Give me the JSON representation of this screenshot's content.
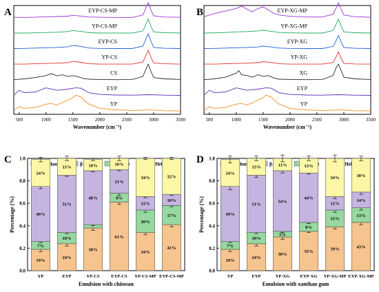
{
  "chart_data": [
    {
      "panel": "A",
      "type": "line",
      "xlabel": "Wavenumber (cm⁻¹)",
      "xlim": [
        400,
        3500
      ],
      "xticks": [
        500,
        1000,
        1500,
        2000,
        2500,
        3000,
        3500
      ],
      "series": [
        {
          "name": "EYP-CS-MP",
          "color": "#9b30d9",
          "x": [
            400,
            600,
            800,
            1000,
            1200,
            1400,
            1500,
            1650,
            1800,
            2000,
            2300,
            2600,
            2800,
            2850,
            2900,
            2950,
            3000,
            3200,
            3500
          ],
          "y": [
            0.06,
            0.05,
            0.07,
            0.09,
            0.11,
            0.13,
            0.18,
            0.14,
            0.08,
            0.06,
            0.05,
            0.05,
            0.2,
            0.6,
            0.95,
            0.5,
            0.15,
            0.08,
            0.06
          ]
        },
        {
          "name": "YP-CS-MP",
          "color": "#1fa85a",
          "x": [
            400,
            600,
            800,
            1000,
            1200,
            1400,
            1500,
            1650,
            1800,
            2000,
            2300,
            2600,
            2800,
            2850,
            2900,
            2950,
            3000,
            3200,
            3500
          ],
          "y": [
            0.05,
            0.05,
            0.06,
            0.08,
            0.1,
            0.14,
            0.2,
            0.15,
            0.07,
            0.05,
            0.05,
            0.05,
            0.18,
            0.55,
            0.9,
            0.45,
            0.12,
            0.07,
            0.05
          ]
        },
        {
          "name": "EYP-CS",
          "color": "#1f5fd6",
          "x": [
            400,
            600,
            800,
            1000,
            1200,
            1400,
            1500,
            1650,
            1800,
            2000,
            2300,
            2600,
            2800,
            2850,
            2900,
            2950,
            3000,
            3200,
            3500
          ],
          "y": [
            0.05,
            0.06,
            0.08,
            0.1,
            0.12,
            0.16,
            0.24,
            0.18,
            0.08,
            0.06,
            0.05,
            0.05,
            0.2,
            0.6,
            0.95,
            0.5,
            0.12,
            0.07,
            0.05
          ]
        },
        {
          "name": "YP-CS",
          "color": "#e0302a",
          "x": [
            400,
            600,
            800,
            1000,
            1200,
            1400,
            1500,
            1650,
            1800,
            2000,
            2300,
            2600,
            2800,
            2850,
            2900,
            2950,
            3000,
            3200,
            3500
          ],
          "y": [
            0.05,
            0.05,
            0.07,
            0.09,
            0.11,
            0.14,
            0.22,
            0.16,
            0.07,
            0.05,
            0.05,
            0.05,
            0.18,
            0.55,
            0.9,
            0.45,
            0.12,
            0.07,
            0.05
          ]
        },
        {
          "name": "CS",
          "color": "#2a2a2a",
          "x": [
            400,
            600,
            800,
            1000,
            1100,
            1200,
            1300,
            1400,
            1500,
            1600,
            1700,
            1800,
            2000,
            2300,
            2600,
            2800,
            2850,
            2900,
            2950,
            3000,
            3200,
            3500
          ],
          "y": [
            0.05,
            0.1,
            0.18,
            0.3,
            0.42,
            0.28,
            0.35,
            0.25,
            0.3,
            0.22,
            0.12,
            0.08,
            0.06,
            0.05,
            0.06,
            0.25,
            0.65,
            1.0,
            0.55,
            0.18,
            0.1,
            0.06
          ]
        },
        {
          "name": "EYP",
          "color": "#5a2fb5",
          "x": [
            400,
            500,
            600,
            800,
            1000,
            1200,
            1400,
            1550,
            1650,
            1800,
            2000,
            2300,
            2600,
            2900,
            3200,
            3500
          ],
          "y": [
            0.05,
            0.35,
            0.2,
            0.25,
            0.5,
            0.35,
            0.42,
            0.5,
            0.48,
            0.2,
            0.1,
            0.06,
            0.05,
            0.08,
            0.05,
            0.04
          ]
        },
        {
          "name": "YP",
          "color": "#f08c1a",
          "x": [
            400,
            500,
            600,
            800,
            1000,
            1100,
            1200,
            1300,
            1400,
            1500,
            1550,
            1650,
            1700,
            1800,
            2000,
            2300,
            2600,
            2900,
            3200,
            3500
          ],
          "y": [
            0.05,
            0.3,
            0.2,
            0.25,
            0.45,
            0.5,
            0.4,
            0.55,
            0.7,
            0.85,
            1.0,
            0.9,
            0.7,
            0.45,
            0.2,
            0.1,
            0.06,
            0.1,
            0.05,
            0.04
          ]
        }
      ]
    },
    {
      "panel": "B",
      "type": "line",
      "xlabel": "Wavenumber (cm⁻¹)",
      "xlim": [
        400,
        3500
      ],
      "xticks": [
        500,
        1000,
        1500,
        2000,
        2500,
        3000,
        3500
      ],
      "series": [
        {
          "name": "EYP-XG-MP",
          "color": "#9b30d9",
          "x": [
            400,
            600,
            800,
            1000,
            1100,
            1200,
            1300,
            1400,
            1500,
            1600,
            1700,
            1800,
            2000,
            2300,
            2600,
            2800,
            2850,
            2900,
            2950,
            3000,
            3200,
            3500
          ],
          "y": [
            0.1,
            0.3,
            0.45,
            0.6,
            0.75,
            0.55,
            0.4,
            0.6,
            0.7,
            0.5,
            0.3,
            0.2,
            0.12,
            0.08,
            0.08,
            0.25,
            0.6,
            0.95,
            0.55,
            0.2,
            0.1,
            0.06
          ]
        },
        {
          "name": "YP-XG-MP",
          "color": "#1fa85a",
          "x": [
            400,
            600,
            800,
            1000,
            1200,
            1400,
            1500,
            1650,
            1800,
            2000,
            2300,
            2600,
            2800,
            2850,
            2900,
            2950,
            3000,
            3200,
            3500
          ],
          "y": [
            0.05,
            0.06,
            0.08,
            0.12,
            0.14,
            0.18,
            0.22,
            0.16,
            0.08,
            0.06,
            0.05,
            0.05,
            0.2,
            0.55,
            0.9,
            0.45,
            0.12,
            0.07,
            0.05
          ]
        },
        {
          "name": "EYP-XG",
          "color": "#1f5fd6",
          "x": [
            400,
            600,
            800,
            1000,
            1200,
            1400,
            1500,
            1650,
            1800,
            2000,
            2300,
            2600,
            2800,
            2850,
            2900,
            2950,
            3000,
            3200,
            3500
          ],
          "y": [
            0.05,
            0.06,
            0.08,
            0.1,
            0.12,
            0.15,
            0.2,
            0.15,
            0.08,
            0.06,
            0.05,
            0.05,
            0.18,
            0.5,
            0.85,
            0.45,
            0.12,
            0.07,
            0.05
          ]
        },
        {
          "name": "YP-XG",
          "color": "#e0302a",
          "x": [
            400,
            600,
            800,
            1000,
            1200,
            1400,
            1500,
            1650,
            1800,
            2000,
            2300,
            2600,
            2800,
            2850,
            2900,
            2950,
            3000,
            3200,
            3500
          ],
          "y": [
            0.05,
            0.05,
            0.07,
            0.09,
            0.11,
            0.14,
            0.2,
            0.15,
            0.07,
            0.05,
            0.05,
            0.05,
            0.15,
            0.45,
            0.8,
            0.4,
            0.1,
            0.06,
            0.05
          ]
        },
        {
          "name": "XG",
          "color": "#2a2a2a",
          "x": [
            400,
            600,
            800,
            1000,
            1050,
            1100,
            1200,
            1300,
            1400,
            1500,
            1600,
            1700,
            1800,
            2000,
            2300,
            2600,
            2800,
            2850,
            2900,
            2950,
            3000,
            3200,
            3500
          ],
          "y": [
            0.05,
            0.1,
            0.2,
            0.45,
            0.6,
            0.35,
            0.3,
            0.2,
            0.35,
            0.25,
            0.3,
            0.15,
            0.08,
            0.06,
            0.05,
            0.06,
            0.3,
            0.75,
            1.0,
            0.6,
            0.2,
            0.1,
            0.06
          ]
        },
        {
          "name": "EYP",
          "color": "#5a2fb5",
          "x": [
            400,
            500,
            600,
            800,
            1000,
            1200,
            1400,
            1550,
            1650,
            1800,
            2000,
            2300,
            2600,
            2900,
            3200,
            3500
          ],
          "y": [
            0.05,
            0.35,
            0.2,
            0.25,
            0.5,
            0.35,
            0.42,
            0.5,
            0.48,
            0.2,
            0.1,
            0.06,
            0.05,
            0.08,
            0.05,
            0.04
          ]
        },
        {
          "name": "YP",
          "color": "#f08c1a",
          "x": [
            400,
            500,
            600,
            800,
            1000,
            1100,
            1200,
            1300,
            1400,
            1500,
            1550,
            1650,
            1700,
            1800,
            2000,
            2300,
            2600,
            2900,
            3200,
            3500
          ],
          "y": [
            0.05,
            0.3,
            0.2,
            0.25,
            0.45,
            0.5,
            0.4,
            0.55,
            0.7,
            0.85,
            1.0,
            0.9,
            0.7,
            0.45,
            0.2,
            0.1,
            0.06,
            0.1,
            0.05,
            0.04
          ]
        }
      ]
    },
    {
      "panel": "C",
      "type": "bar",
      "stacked": true,
      "xlabel": "Emulsion with chitosan",
      "ylabel": "Percentage (%)",
      "ylim": [
        0,
        1.0
      ],
      "yticks": [
        "0.0",
        "0.2",
        "0.4",
        "0.6",
        "0.8",
        "1.0"
      ],
      "legend": "top",
      "categories": [
        "YP",
        "EYP",
        "YP-CS",
        "EYP-CS",
        "YP-CS-MP",
        "EYP-CS-MP"
      ],
      "series": [
        {
          "name": "α-Helix",
          "color": "#f6c48e",
          "values": [
            0.19,
            0.24,
            0.38,
            0.61,
            0.34,
            0.41
          ],
          "labels": [
            "19%",
            "24%",
            "38%",
            "61%",
            "34%",
            "41%"
          ]
        },
        {
          "name": "β-Sheet",
          "color": "#97d7a0",
          "values": [
            0.07,
            0.1,
            0.03,
            0.08,
            0.2,
            0.17
          ],
          "labels": [
            "7%",
            "10%",
            "",
            "8%",
            "20%",
            "17%"
          ]
        },
        {
          "name": "β-Turn",
          "color": "#c5b4df",
          "values": [
            0.49,
            0.51,
            0.48,
            0.21,
            0.12,
            0.1
          ],
          "labels": [
            "49%",
            "51%",
            "48%",
            "21%",
            "12%",
            "10%"
          ]
        },
        {
          "name": "Random coil",
          "color": "#fbf7a6",
          "values": [
            0.24,
            0.15,
            0.1,
            0.1,
            0.34,
            0.32
          ],
          "labels": [
            "24%",
            "15%",
            "10%",
            "10%",
            "34%",
            "32%"
          ]
        }
      ],
      "errors": [
        [
          0.02,
          0.02,
          0.02,
          0.02,
          0.02,
          0.02
        ],
        [
          0.01,
          0.01,
          0.01,
          0.02,
          0.02,
          0.01
        ],
        [
          0.02,
          0.01,
          0.01,
          0.01,
          0.01,
          0.01
        ],
        [
          0.02,
          0.02,
          0.01,
          0.02,
          0.01,
          0.01
        ]
      ]
    },
    {
      "panel": "D",
      "type": "bar",
      "stacked": true,
      "xlabel": "Emulsion with xanthan gum",
      "ylabel": "Percentage (%)",
      "ylim": [
        0,
        1.0
      ],
      "yticks": [
        "0.0",
        "0.2",
        "0.4",
        "0.6",
        "0.8",
        "1.0"
      ],
      "legend": "top",
      "categories": [
        "YP",
        "EYP",
        "YP-XG",
        "EYP-XG",
        "YP-XG-MP",
        "EYP-XG-MP"
      ],
      "series": [
        {
          "name": "α-Helix",
          "color": "#f6c48e",
          "values": [
            0.19,
            0.24,
            0.3,
            0.35,
            0.39,
            0.43
          ],
          "labels": [
            "19%",
            "24%",
            "30%",
            "35%",
            "39%",
            "43%"
          ]
        },
        {
          "name": "β-Sheet",
          "color": "#97d7a0",
          "values": [
            0.07,
            0.1,
            0.05,
            0.08,
            0.15,
            0.13
          ],
          "labels": [
            "7%",
            "10%",
            "5%",
            "8%",
            "15%",
            "13%"
          ]
        },
        {
          "name": "β-Turn",
          "color": "#c5b4df",
          "values": [
            0.49,
            0.51,
            0.54,
            0.44,
            0.12,
            0.14
          ],
          "labels": [
            "49%",
            "51%",
            "54%",
            "44%",
            "12%",
            "14%"
          ]
        },
        {
          "name": "Random coil",
          "color": "#fbf7a6",
          "values": [
            0.24,
            0.15,
            0.11,
            0.13,
            0.34,
            0.3
          ],
          "labels": [
            "24%",
            "15%",
            "11%",
            "13%",
            "34%",
            "30%"
          ]
        }
      ],
      "errors": [
        [
          0.02,
          0.02,
          0.02,
          0.01,
          0.02,
          0.02
        ],
        [
          0.01,
          0.01,
          0.01,
          0.01,
          0.02,
          0.02
        ],
        [
          0.03,
          0.02,
          0.02,
          0.01,
          0.02,
          0.02
        ],
        [
          0.03,
          0.02,
          0.03,
          0.02,
          0.03,
          0.02
        ]
      ]
    }
  ]
}
